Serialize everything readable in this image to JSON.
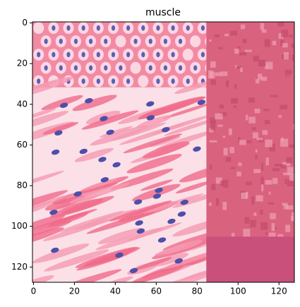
{
  "chart_data": {
    "type": "image",
    "title": "muscle",
    "xlim": [
      -0.5,
      127.5
    ],
    "ylim": [
      127.5,
      -0.5
    ],
    "xticks": [
      0,
      20,
      40,
      60,
      80,
      100,
      120
    ],
    "yticks": [
      0,
      20,
      40,
      60,
      80,
      100,
      120
    ]
  }
}
